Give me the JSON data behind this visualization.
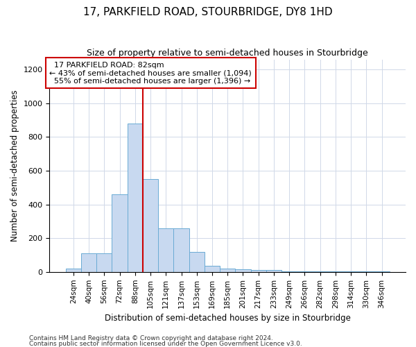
{
  "title": "17, PARKFIELD ROAD, STOURBRIDGE, DY8 1HD",
  "subtitle": "Size of property relative to semi-detached houses in Stourbridge",
  "xlabel": "Distribution of semi-detached houses by size in Stourbridge",
  "ylabel": "Number of semi-detached properties",
  "categories": [
    "24sqm",
    "40sqm",
    "56sqm",
    "72sqm",
    "88sqm",
    "105sqm",
    "121sqm",
    "137sqm",
    "153sqm",
    "169sqm",
    "185sqm",
    "201sqm",
    "217sqm",
    "233sqm",
    "249sqm",
    "266sqm",
    "282sqm",
    "298sqm",
    "314sqm",
    "330sqm",
    "346sqm"
  ],
  "values": [
    18,
    110,
    110,
    460,
    880,
    550,
    260,
    260,
    120,
    35,
    20,
    15,
    10,
    10,
    5,
    5,
    5,
    5,
    5,
    5,
    5
  ],
  "bar_color": "#c8d9f0",
  "bar_edge_color": "#6aabd4",
  "red_line_index": 4.5,
  "annotation_title": "17 PARKFIELD ROAD: 82sqm",
  "annotation_smaller": "← 43% of semi-detached houses are smaller (1,094)",
  "annotation_larger": "55% of semi-detached houses are larger (1,396) →",
  "ylim": [
    0,
    1260
  ],
  "yticks": [
    0,
    200,
    400,
    600,
    800,
    1000,
    1200
  ],
  "footer1": "Contains HM Land Registry data © Crown copyright and database right 2024.",
  "footer2": "Contains public sector information licensed under the Open Government Licence v3.0.",
  "background_color": "#ffffff",
  "grid_color": "#d0d8e8"
}
